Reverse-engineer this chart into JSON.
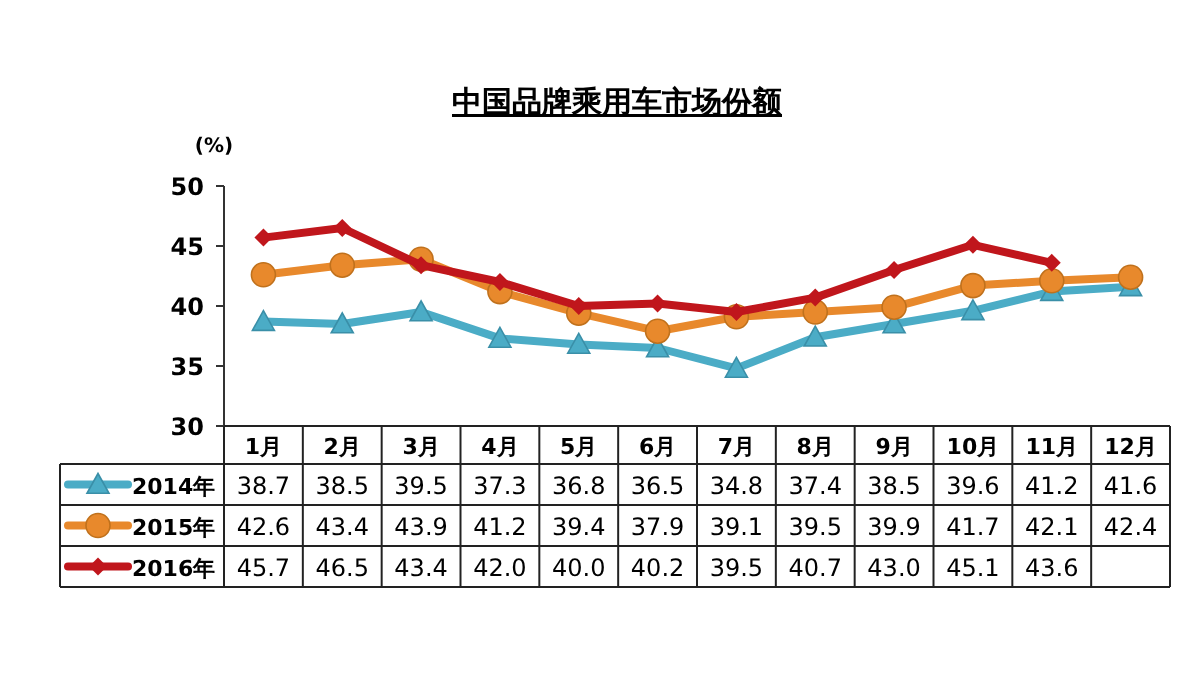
{
  "chart_data": {
    "type": "line",
    "title": "中国品牌乘用车市场份额",
    "ylabel": "(%)",
    "categories": [
      "1月",
      "2月",
      "3月",
      "4月",
      "5月",
      "6月",
      "7月",
      "8月",
      "9月",
      "10月",
      "11月",
      "12月"
    ],
    "series": [
      {
        "name": "2014年",
        "color": "#4bacc6",
        "marker": "triangle",
        "values": [
          38.7,
          38.5,
          39.5,
          37.3,
          36.8,
          36.5,
          34.8,
          37.4,
          38.5,
          39.6,
          41.2,
          41.6
        ],
        "value_labels": [
          "38.7",
          "38.5",
          "39.5",
          "37.3",
          "36.8",
          "36.5",
          "34.8",
          "37.4",
          "38.5",
          "39.6",
          "41.2",
          "41.6"
        ]
      },
      {
        "name": "2015年",
        "color": "#e8892c",
        "marker": "circle",
        "values": [
          42.6,
          43.4,
          43.9,
          41.2,
          39.4,
          37.9,
          39.1,
          39.5,
          39.9,
          41.7,
          42.1,
          42.4
        ],
        "value_labels": [
          "42.6",
          "43.4",
          "43.9",
          "41.2",
          "39.4",
          "37.9",
          "39.1",
          "39.5",
          "39.9",
          "41.7",
          "42.1",
          "42.4"
        ]
      },
      {
        "name": "2016年",
        "color": "#c0161c",
        "marker": "diamond",
        "values": [
          45.7,
          46.5,
          43.4,
          42.0,
          40.0,
          40.2,
          39.5,
          40.7,
          43.0,
          45.1,
          43.6,
          null
        ],
        "value_labels": [
          "45.7",
          "46.5",
          "43.4",
          "42.0",
          "40.0",
          "40.2",
          "39.5",
          "40.7",
          "43.0",
          "45.1",
          "43.6",
          null
        ]
      }
    ],
    "ylim": [
      30,
      50
    ],
    "yticks": [
      30,
      35,
      40,
      45,
      50
    ],
    "legend": "bottom",
    "grid": false
  }
}
